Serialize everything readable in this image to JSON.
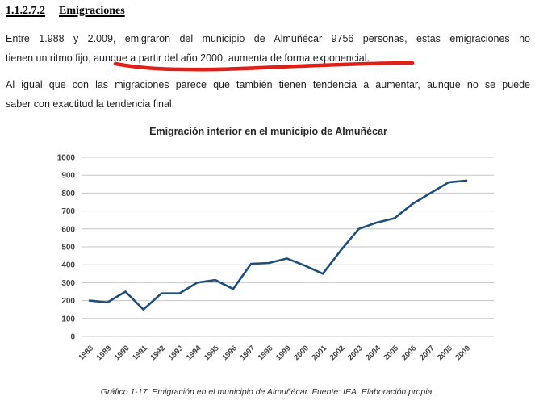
{
  "page": {
    "heading": {
      "number": "1.1.2.7.2",
      "title": "Emigraciones"
    },
    "paragraph1": {
      "lines": [
        "Entre 1.988 y 2.009, emigraron del municipio de Almuñécar 9756 personas, estas emigraciones no",
        "tienen un ritmo fijo, aunque a partir del año 2000, aumenta de forma exponencial."
      ]
    },
    "annotation": {
      "type": "hand-drawn-red-underline",
      "underlined_text": "a partir del año 2000, aumenta de forma exponencial.",
      "color": "#e02018"
    },
    "paragraph2": {
      "lines": [
        "Al igual que con las migraciones parece que también tienen tendencia a aumentar, aunque no se puede",
        "saber con exactitud la tendencia final."
      ]
    },
    "caption": "Gráfico 1-17. Emigración en el municipio de Almuñécar. Fuente: IEA. Elaboración propia."
  },
  "chart_data": {
    "type": "line",
    "title": "Emigración interior en el municipio de Almuñécar",
    "categories": [
      "1988",
      "1989",
      "1990",
      "1991",
      "1992",
      "1993",
      "1994",
      "1995",
      "1996",
      "1997",
      "1998",
      "1999",
      "2000",
      "2001",
      "2002",
      "2003",
      "2004",
      "2005",
      "2006",
      "2007",
      "2008",
      "2009"
    ],
    "values": [
      200,
      190,
      250,
      150,
      240,
      240,
      300,
      315,
      265,
      405,
      410,
      435,
      395,
      350,
      480,
      600,
      635,
      660,
      740,
      800,
      860,
      870
    ],
    "xlabel": "",
    "ylabel": "",
    "ylim": [
      0,
      1000
    ],
    "ytick_step": 100,
    "grid": true,
    "legend": false,
    "line_color": "#1F4E79",
    "gridline_color": "#c6c6c6",
    "axis_label_color": "#404040"
  }
}
